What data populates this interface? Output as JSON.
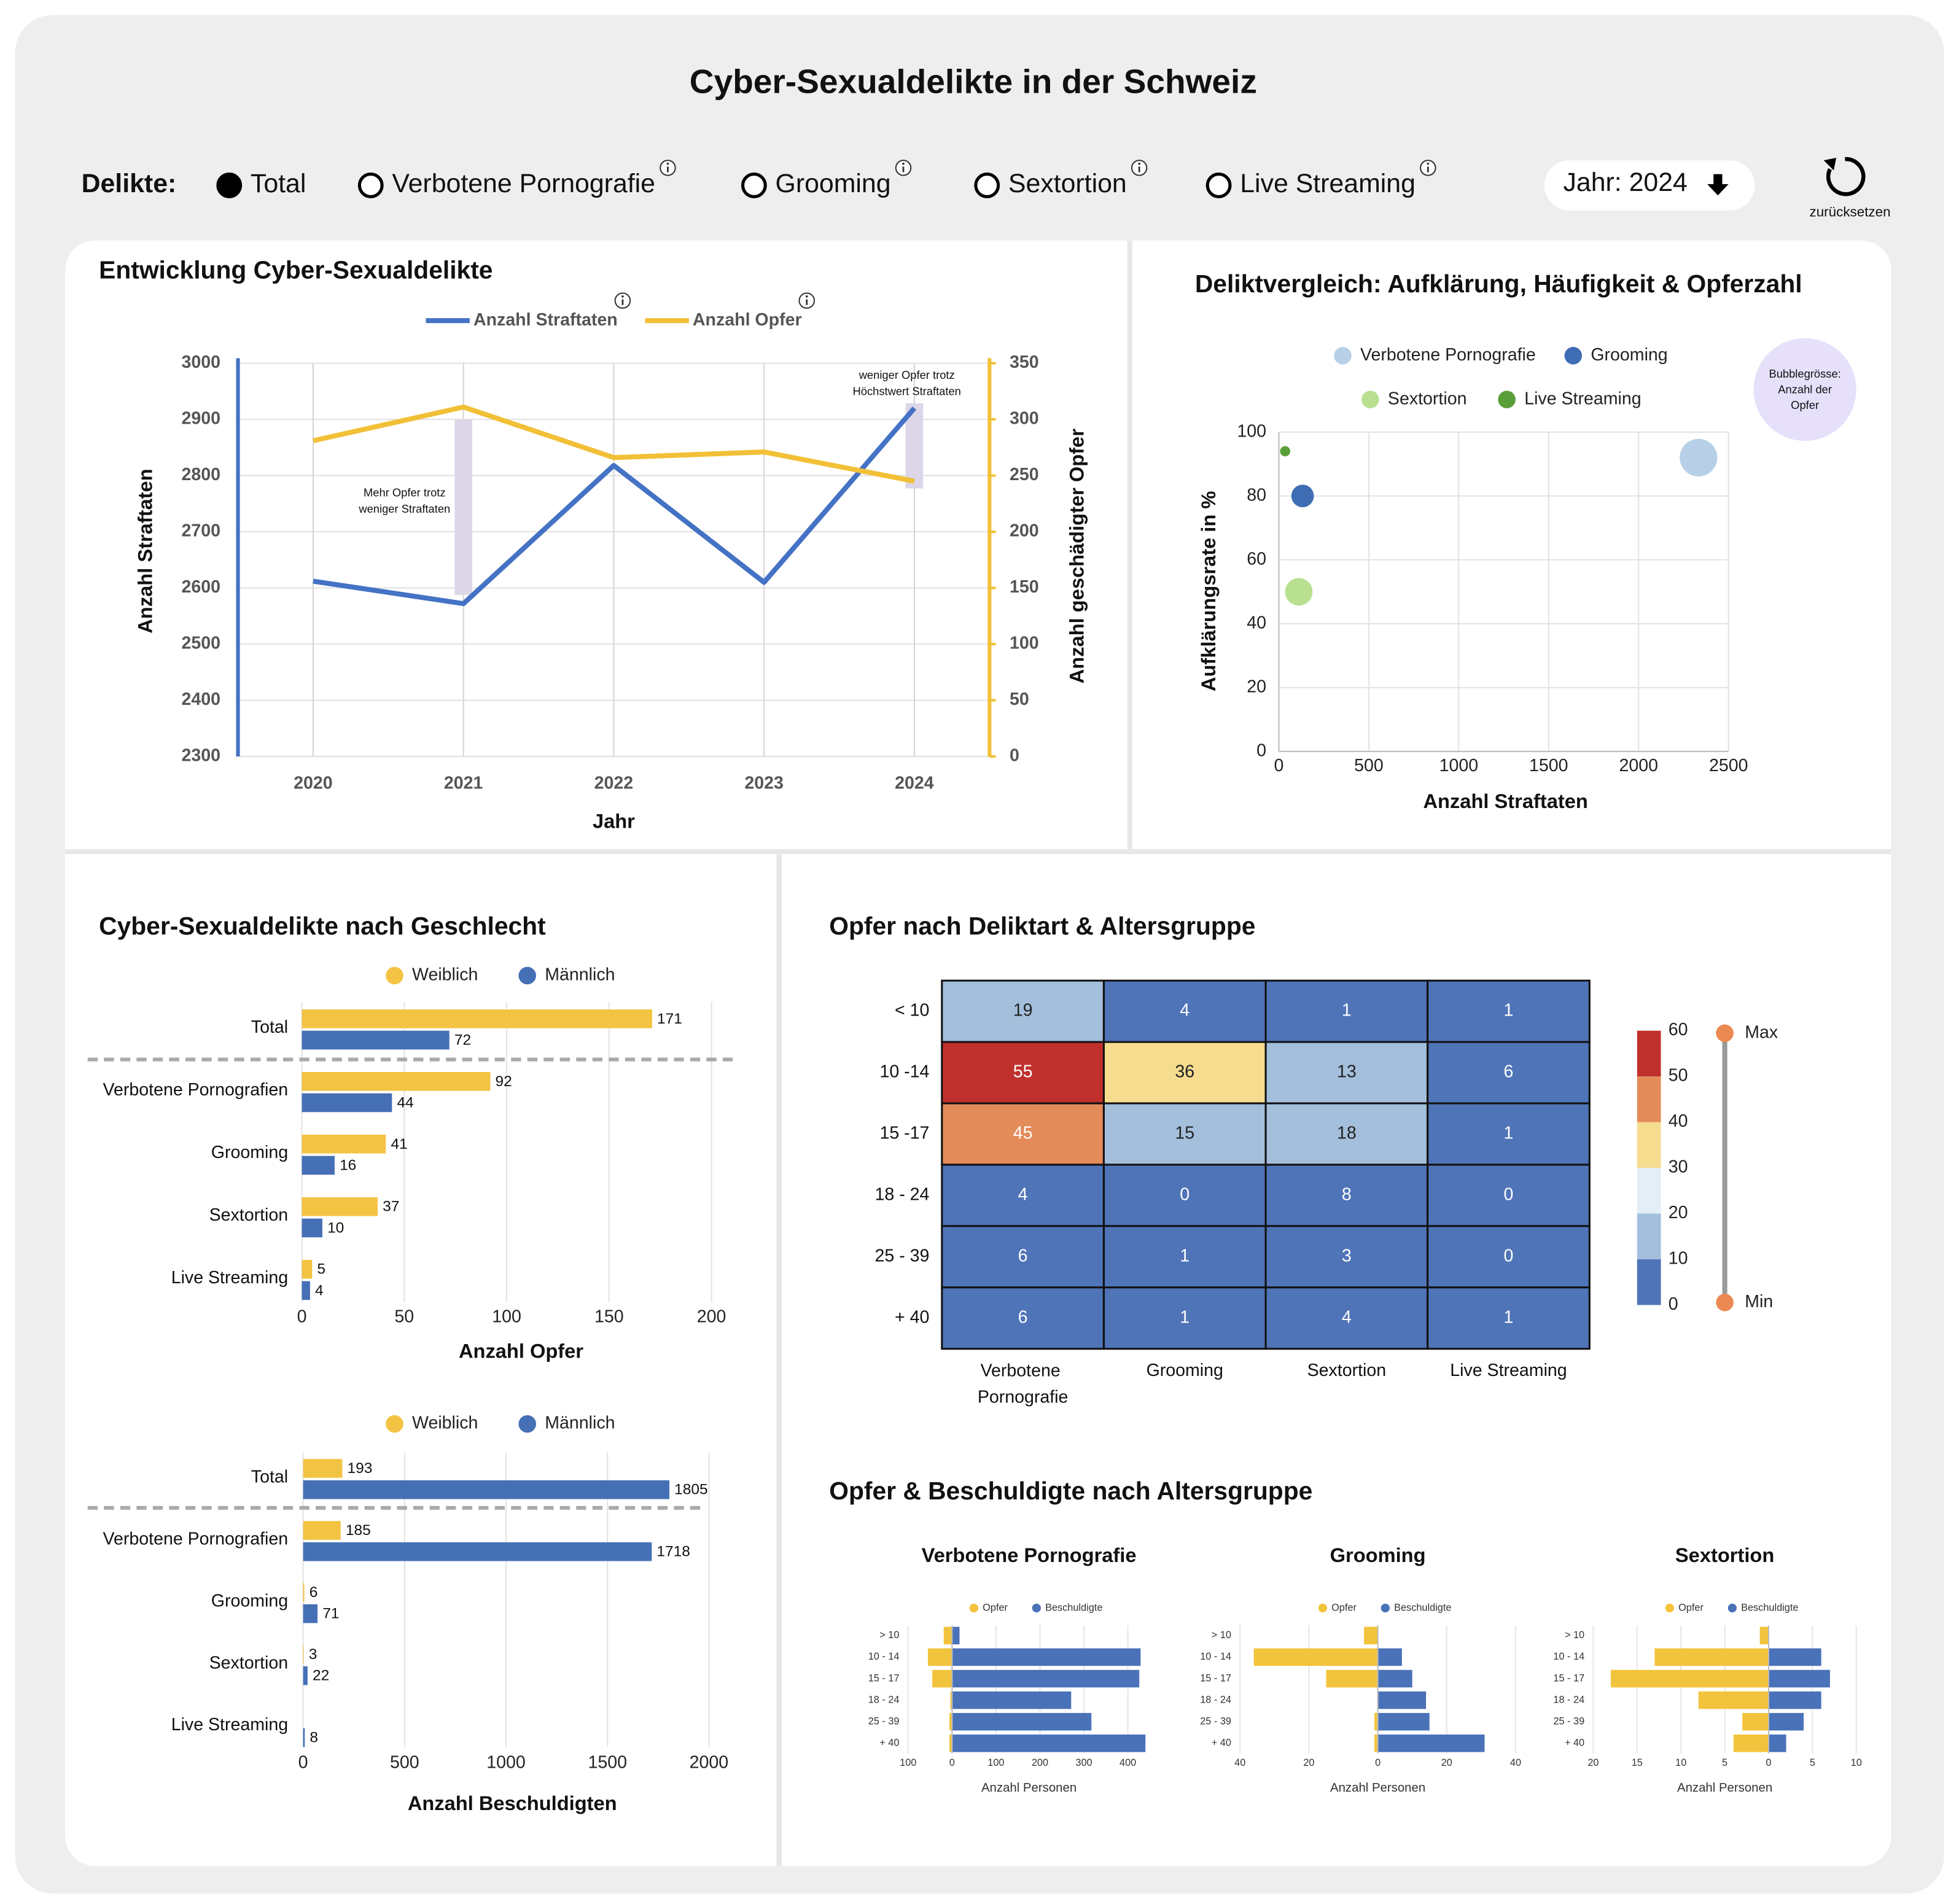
{
  "header": {
    "title": "Cyber-Sexualdelikte in der Schweiz",
    "filter_label": "Delikte:",
    "options": [
      "Total",
      "Verbotene Pornografie",
      "Grooming",
      "Sextortion",
      "Live Streaming"
    ],
    "selected": 0,
    "year": "Jahr: 2024",
    "reset": "zurücksetzen"
  },
  "chart_data": [
    {
      "type": "line",
      "title": "Entwicklung Cyber-Sexualdelikte",
      "categories": [
        "2020",
        "2021",
        "2022",
        "2023",
        "2024"
      ],
      "series": [
        {
          "name": "Anzahl Straftaten",
          "color": "#4472c4",
          "values": [
            2612,
            2572,
            2818,
            2610,
            2920
          ]
        },
        {
          "name": "Anzahl Opfer",
          "color": "#f2c037",
          "axis": "y2",
          "values": [
            281,
            311,
            266,
            271,
            245
          ]
        }
      ],
      "ylim": [
        2300,
        3000
      ],
      "yticks": [
        2300,
        2400,
        2500,
        2600,
        2700,
        2800,
        2900,
        3000
      ],
      "y2lim": [
        0,
        350
      ],
      "y2ticks": [
        0,
        50,
        100,
        150,
        200,
        250,
        300,
        350
      ],
      "xlabel": "Jahr",
      "ylabel": "Anzahl Straftaten",
      "y2label": "Anzahl geschädigter Opfer",
      "grid": true,
      "annotations": [
        {
          "category": "2021",
          "lines": [
            "Mehr Opfer trotz",
            "weniger Straftaten"
          ]
        },
        {
          "category": "2024",
          "lines": [
            "weniger Opfer trotz",
            "Höchstwert Straftaten"
          ]
        }
      ]
    },
    {
      "type": "bubble",
      "title": "Deliktvergleich: Aufklärung, Häufigkeit & Opferzahl",
      "series": [
        {
          "name": "Verbotene Pornografie",
          "color": "#b7d0e8",
          "x": [
            2333
          ],
          "y": [
            92
          ],
          "size": [
            136
          ]
        },
        {
          "name": "Grooming",
          "color": "#3e6db4",
          "x": [
            132
          ],
          "y": [
            80
          ],
          "size": [
            49
          ]
        },
        {
          "name": "Sextortion",
          "color": "#b9e090",
          "x": [
            111
          ],
          "y": [
            50
          ],
          "size": [
            73
          ]
        },
        {
          "name": "Live Streaming",
          "color": "#5a9e3a",
          "x": [
            35
          ],
          "y": [
            94
          ],
          "size": [
            10
          ]
        }
      ],
      "xlim": [
        0,
        2500
      ],
      "xticks": [
        0,
        500,
        1000,
        1500,
        2000,
        2500
      ],
      "ylim": [
        0,
        100
      ],
      "yticks": [
        0,
        20,
        40,
        60,
        80,
        100
      ],
      "xlabel": "Anzahl Straftaten",
      "ylabel": "Aufklärungsrate in %",
      "grid": true,
      "size_note": [
        "Bubblegrösse:",
        "Anzahl der",
        "Opfer"
      ]
    },
    {
      "type": "hbar",
      "title": "Cyber-Sexualdelikte nach Geschlecht",
      "categories": [
        "Total",
        "Verbotene Pornografien",
        "Grooming",
        "Sextortion",
        "Live Streaming"
      ],
      "series": [
        {
          "name": "Weiblich",
          "color": "#f3c343",
          "values": [
            171,
            92,
            41,
            37,
            5
          ]
        },
        {
          "name": "Männlich",
          "color": "#4670b5",
          "values": [
            72,
            44,
            16,
            10,
            4
          ]
        }
      ],
      "xlim": [
        0,
        210
      ],
      "xticks": [
        0,
        50,
        100,
        150,
        200
      ],
      "xlabel": "Anzahl Opfer",
      "grid": true
    },
    {
      "type": "hbar",
      "categories": [
        "Total",
        "Verbotene Pornografien",
        "Grooming",
        "Sextortion",
        "Live Streaming"
      ],
      "series": [
        {
          "name": "Weiblich",
          "color": "#f3c343",
          "values": [
            193,
            185,
            6,
            3,
            null
          ]
        },
        {
          "name": "Männlich",
          "color": "#4670b5",
          "values": [
            1805,
            1718,
            71,
            22,
            8
          ]
        }
      ],
      "xlim": [
        0,
        2000
      ],
      "xticks": [
        0,
        500,
        1000,
        1500,
        2000
      ],
      "xlabel": "Anzahl Beschuldigten",
      "grid": true
    },
    {
      "type": "heatmap",
      "title": "Opfer nach Deliktart & Altersgruppe",
      "rows": [
        "< 10",
        "10 -14",
        "15 -17",
        "18 - 24",
        "25 - 39",
        "+ 40"
      ],
      "columns": [
        "Verbotene Pornografie",
        "Grooming",
        "Sextortion",
        "Live Streaming"
      ],
      "values": [
        [
          19,
          4,
          1,
          1
        ],
        [
          55,
          36,
          13,
          6
        ],
        [
          45,
          15,
          18,
          1
        ],
        [
          4,
          0,
          8,
          0
        ],
        [
          6,
          1,
          3,
          0
        ],
        [
          6,
          1,
          4,
          1
        ]
      ],
      "scale_ticks": [
        0,
        10,
        20,
        30,
        40,
        50,
        60
      ],
      "scale_colors": [
        "#4f74b8",
        "#a3bfdc",
        "#e3eef7",
        "#f5dc8e",
        "#e48b5a",
        "#c0312d"
      ],
      "slider": [
        "Max",
        "Min"
      ]
    },
    {
      "type": "butterfly",
      "title": "Opfer & Beschuldigte nach Altersgruppe",
      "panels": [
        {
          "title": "Verbotene Pornografie",
          "categories": [
            "> 10",
            "10 - 14",
            "15 - 17",
            "18 - 24",
            "25 - 39",
            "+ 40"
          ],
          "series": [
            {
              "name": "Opfer",
              "color": "#f2c33c",
              "values": [
                19,
                55,
                45,
                4,
                6,
                6
              ]
            },
            {
              "name": "Beschuldigte",
              "color": "#4a72b8",
              "values": [
                17,
                429,
                426,
                271,
                317,
                440
              ]
            }
          ],
          "xlim": [
            -100,
            450
          ],
          "xticks": [
            {
              "value": -100,
              "label": "100"
            },
            0,
            100,
            200,
            300,
            400
          ],
          "xlabel": "Anzahl Personen"
        },
        {
          "title": "Grooming",
          "categories": [
            "> 10",
            "10 - 14",
            "15 - 17",
            "18 - 24",
            "25 - 39",
            "+ 40"
          ],
          "series": [
            {
              "name": "Opfer",
              "color": "#f2c33c",
              "values": [
                4,
                36,
                15,
                0,
                1,
                1
              ]
            },
            {
              "name": "Beschuldigte",
              "color": "#4a72b8",
              "values": [
                0,
                7,
                10,
                14,
                15,
                31
              ]
            }
          ],
          "xlim": [
            -40,
            40
          ],
          "xticks": [
            {
              "value": -40,
              "label": "40"
            },
            {
              "value": -20,
              "label": "20"
            },
            0,
            20,
            40
          ],
          "xlabel": "Anzahl Personen"
        },
        {
          "title": "Sextortion",
          "categories": [
            "> 10",
            "10 - 14",
            "15 - 17",
            "18 - 24",
            "25 - 39",
            "+ 40"
          ],
          "series": [
            {
              "name": "Opfer",
              "color": "#f2c33c",
              "values": [
                1,
                13,
                18,
                8,
                3,
                4
              ]
            },
            {
              "name": "Beschuldigte",
              "color": "#4a72b8",
              "values": [
                0,
                6,
                7,
                6,
                4,
                2
              ]
            }
          ],
          "xlim": [
            -20,
            10
          ],
          "xticks": [
            {
              "value": -20,
              "label": "20"
            },
            {
              "value": -15,
              "label": "15"
            },
            {
              "value": -10,
              "label": "10"
            },
            {
              "value": -5,
              "label": "5"
            },
            0,
            5,
            10
          ],
          "xlabel": "Anzahl Personen"
        }
      ]
    }
  ]
}
